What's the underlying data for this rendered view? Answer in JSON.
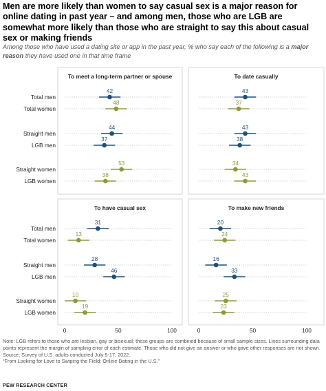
{
  "title": "Men are more likely than women to say casual sex is a major reason for online dating in past year – and among men, those who are LGB are somewhat more likely than those who are straight to say this about casual sex or making friends",
  "subtitle_pre": "Among those who have used a dating site or app in the past year, % who say each of the following is a ",
  "subtitle_em": "major reason",
  "subtitle_post": " they have used one in that time frame",
  "colors": {
    "men": "#1f4e79",
    "women": "#8c9a3a",
    "gridline": "#bbbbbb",
    "panel_border": "#d6d6d6"
  },
  "chart_data": [
    {
      "type": "dot-plot",
      "title": "To meet a long-term partner or spouse",
      "xlim": [
        0,
        100
      ],
      "ticks": [
        "0",
        "50",
        "100"
      ],
      "categories": [
        "Total men",
        "Total women",
        "Straight men",
        "LGB men",
        "Straight women",
        "LGB women"
      ],
      "values": [
        42,
        48,
        44,
        37,
        53,
        38
      ]
    },
    {
      "type": "dot-plot",
      "title": "To date casually",
      "xlim": [
        0,
        100
      ],
      "ticks": [
        "0",
        "50",
        "100"
      ],
      "categories": [
        "Total men",
        "Total women",
        "Straight men",
        "LGB men",
        "Straight women",
        "LGB women"
      ],
      "values": [
        43,
        37,
        43,
        38,
        34,
        43
      ]
    },
    {
      "type": "dot-plot",
      "title": "To have casual sex",
      "xlim": [
        0,
        100
      ],
      "ticks": [
        "0",
        "50",
        "100"
      ],
      "categories": [
        "Total men",
        "Total women",
        "Straight men",
        "LGB men",
        "Straight women",
        "LGB women"
      ],
      "values": [
        31,
        13,
        28,
        46,
        10,
        19
      ]
    },
    {
      "type": "dot-plot",
      "title": "To make new friends",
      "xlim": [
        0,
        100
      ],
      "ticks": [
        "0",
        "50",
        "100"
      ],
      "categories": [
        "Total men",
        "Total women",
        "Straight men",
        "LGB men",
        "Straight women",
        "LGB women"
      ],
      "values": [
        20,
        24,
        16,
        33,
        25,
        23
      ]
    }
  ],
  "footer": {
    "note": "Note: LGB refers to those who are lesbian, gay or bisexual; these groups are combined because of small sample sizes. Lines surrounding data points represent the margin of sampling error of each estimate. Those who did not give an answer or who gave other responses are not shown.",
    "source": "Source: Survey of U.S. adults conducted July 5-17, 2022.",
    "report": "“From Looking for Love to Swiping the Field: Online Dating in the U.S.”"
  },
  "brand": "PEW RESEARCH CENTER"
}
